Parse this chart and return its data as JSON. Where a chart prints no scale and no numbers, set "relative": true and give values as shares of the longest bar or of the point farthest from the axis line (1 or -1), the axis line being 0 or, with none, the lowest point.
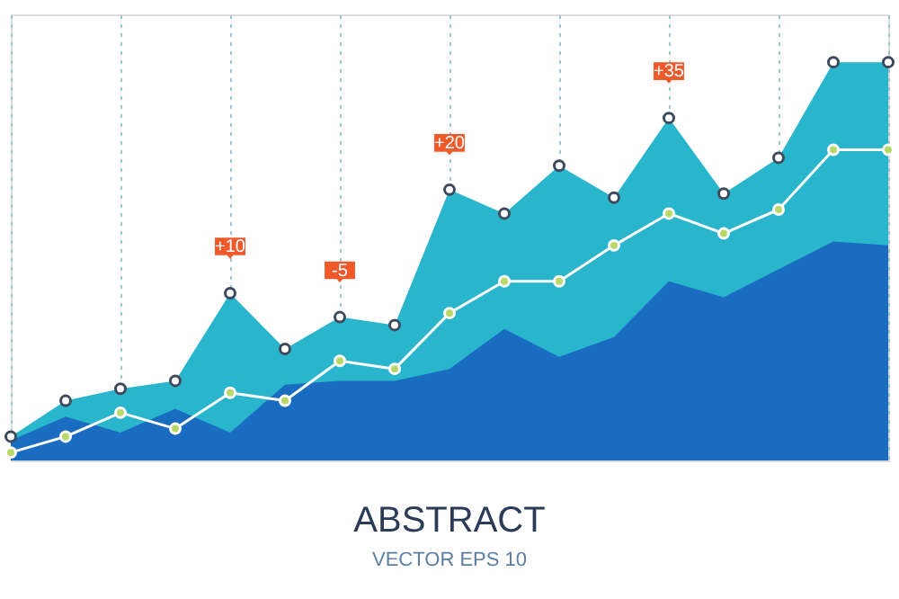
{
  "chart_data": {
    "type": "area",
    "title": "ABSTRACT",
    "subtitle": "VECTOR EPS 10",
    "relative": true,
    "grid": "x",
    "tick_labels": false,
    "marker": "circle",
    "categories": [
      null,
      null,
      null,
      null,
      null,
      null,
      null,
      null,
      null,
      null,
      null,
      null,
      null,
      null,
      null,
      null,
      null
    ],
    "series": [
      {
        "color": "#29b5cc",
        "values": [
          0.06,
          0.15,
          0.18,
          0.2,
          0.42,
          0.28,
          0.36,
          0.34,
          0.68,
          0.62,
          0.74,
          0.66,
          0.86,
          0.67,
          0.76,
          1.0,
          1.0
        ]
      },
      {
        "marker": "none",
        "color": "#1a6cc0",
        "values": [
          0.05,
          0.11,
          0.07,
          0.13,
          0.07,
          0.19,
          0.2,
          0.2,
          0.23,
          0.33,
          0.26,
          0.31,
          0.45,
          0.41,
          0.48,
          0.55,
          0.54
        ]
      },
      {
        "type": "line",
        "color": "#ffffff",
        "values": [
          0.02,
          0.06,
          0.12,
          0.08,
          0.17,
          0.15,
          0.25,
          0.23,
          0.37,
          0.45,
          0.45,
          0.54,
          0.62,
          0.57,
          0.63,
          0.78,
          0.78
        ]
      }
    ],
    "annotations": [
      {
        "text": "+10",
        "y": 0.42
      },
      {
        "text": "-5",
        "y": 0.36
      },
      {
        "text": "+20",
        "y": 0.68
      },
      {
        "text": "+35",
        "y": 0.86
      }
    ]
  }
}
